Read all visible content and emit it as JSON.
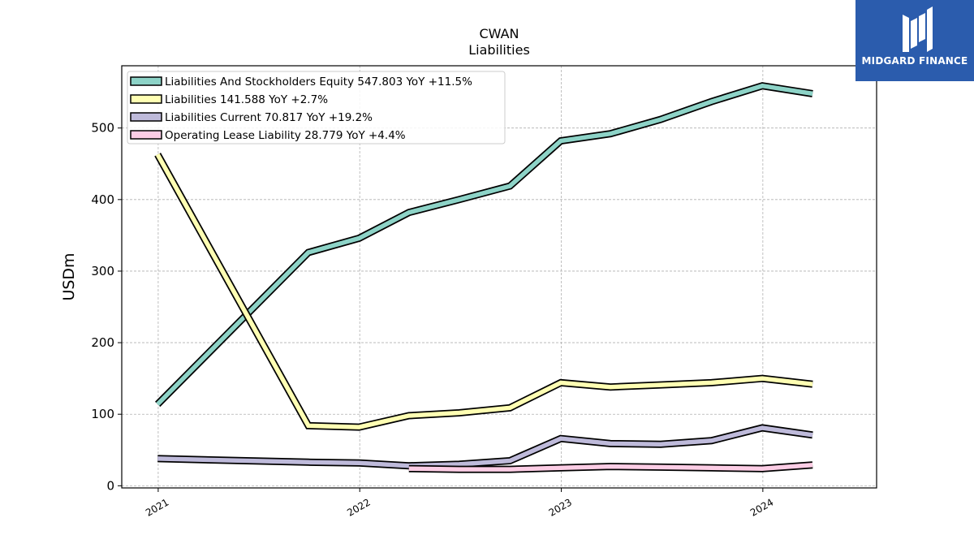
{
  "chart_data": {
    "type": "line",
    "title": "CWAN",
    "subtitle": "Liabilities",
    "xlabel": "",
    "ylabel": "USDm",
    "xlim": [
      "2020-10-27",
      "2024-07-25"
    ],
    "ylim": [
      -3,
      587
    ],
    "yticks": [
      0,
      100,
      200,
      300,
      400,
      500
    ],
    "xticks": [
      {
        "date": "2021-01-01",
        "label": "2021"
      },
      {
        "date": "2022-01-01",
        "label": "2022"
      },
      {
        "date": "2023-01-01",
        "label": "2023"
      },
      {
        "date": "2024-01-01",
        "label": "2024"
      }
    ],
    "grid": true,
    "legend_position": "top-left",
    "series": [
      {
        "name": "Liabilities And Stockholders Equity",
        "legend_label": "Liabilities And Stockholders Equity  547.803 YoY +11.5%",
        "color": "#8dd3c7",
        "points": [
          [
            "2020-12-31",
            114
          ],
          [
            "2021-09-30",
            326
          ],
          [
            "2021-12-31",
            346
          ],
          [
            "2022-03-31",
            382
          ],
          [
            "2022-06-30",
            400
          ],
          [
            "2022-09-30",
            419
          ],
          [
            "2022-12-31",
            482
          ],
          [
            "2023-03-31",
            492
          ],
          [
            "2023-06-30",
            512
          ],
          [
            "2023-09-30",
            537
          ],
          [
            "2023-12-31",
            559
          ],
          [
            "2024-03-31",
            548
          ]
        ]
      },
      {
        "name": "Liabilities",
        "legend_label": "Liabilities  141.588 YoY +2.7%",
        "color": "#ffffb3",
        "points": [
          [
            "2020-12-31",
            463
          ],
          [
            "2021-09-30",
            84
          ],
          [
            "2021-12-31",
            82
          ],
          [
            "2022-03-31",
            98
          ],
          [
            "2022-06-30",
            102
          ],
          [
            "2022-09-30",
            109
          ],
          [
            "2022-12-31",
            144
          ],
          [
            "2023-03-31",
            138
          ],
          [
            "2023-06-30",
            141
          ],
          [
            "2023-09-30",
            144
          ],
          [
            "2023-12-31",
            150
          ],
          [
            "2024-03-31",
            142
          ]
        ]
      },
      {
        "name": "Liabilities Current",
        "legend_label": "Liabilities Current  70.817 YoY +19.2%",
        "color": "#bebada",
        "points": [
          [
            "2020-12-31",
            38
          ],
          [
            "2021-09-30",
            33
          ],
          [
            "2021-12-31",
            32
          ],
          [
            "2022-03-31",
            28
          ],
          [
            "2022-06-30",
            30
          ],
          [
            "2022-09-30",
            35
          ],
          [
            "2022-12-31",
            66
          ],
          [
            "2023-03-31",
            59
          ],
          [
            "2023-06-30",
            58
          ],
          [
            "2023-09-30",
            63
          ],
          [
            "2023-12-31",
            81
          ],
          [
            "2024-03-31",
            71
          ]
        ]
      },
      {
        "name": "Operating Lease Liability",
        "legend_label": "Operating Lease Liability  28.779 YoY +4.4%",
        "color": "#fccde5",
        "points": [
          [
            "2022-03-31",
            24
          ],
          [
            "2022-06-30",
            23
          ],
          [
            "2022-09-30",
            23
          ],
          [
            "2022-12-31",
            25
          ],
          [
            "2023-03-31",
            27
          ],
          [
            "2023-06-30",
            26
          ],
          [
            "2023-09-30",
            25
          ],
          [
            "2023-12-31",
            24
          ],
          [
            "2024-03-31",
            29
          ]
        ]
      }
    ]
  },
  "logo": {
    "text": "MIDGARD FINANCE",
    "background": "#2b5cad"
  }
}
